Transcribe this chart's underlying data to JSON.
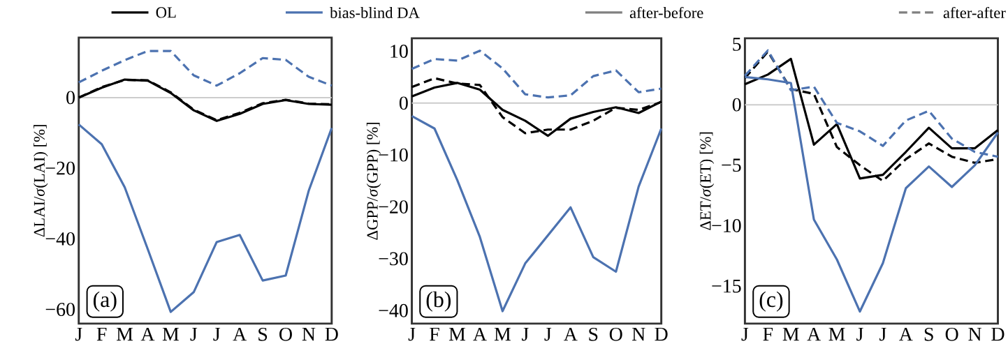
{
  "chart_data": [
    {
      "type": "line",
      "legend": "top",
      "ylabel": "ΔLAI/*σ*(LAI) [%]",
      "annotations": [
        "(a)",
        "after-before",
        "after-after"
      ],
      "categories": [
        "J",
        "F",
        "M",
        "A",
        "M",
        "J",
        "J",
        "A",
        "S",
        "O",
        "N",
        "D"
      ],
      "ylim": [
        -64,
        17
      ],
      "yticks": [
        {
          "value": 0,
          "label": "0"
        },
        {
          "value": -20,
          "label": "−20"
        },
        {
          "value": -40,
          "label": "−40"
        },
        {
          "value": -60,
          "label": "−60"
        }
      ],
      "ref_lines": [
        {
          "axis": "y",
          "value": 0,
          "color": "#cccccc"
        }
      ],
      "series": [
        {
          "name": "OL",
          "color": "#000000",
          "line_style": "solid",
          "values": [
            0,
            2.8,
            5.1,
            4.8,
            1.3,
            -3.6,
            -6.6,
            -4.6,
            -1.8,
            -0.7,
            -1.8,
            -2.0
          ]
        },
        {
          "color": "#000000",
          "line_style": "dashed",
          "values": [
            0,
            3.0,
            5.0,
            4.9,
            1.5,
            -3.4,
            -6.4,
            -4.3,
            -1.6,
            -0.6,
            -1.7,
            -1.9
          ]
        },
        {
          "name": "bias-blind DA",
          "color": "#4c72b0",
          "line_style": "solid",
          "values": [
            -7.6,
            -13.2,
            -25.4,
            -42.9,
            -60.7,
            -55.1,
            -40.9,
            -38.9,
            -51.8,
            -50.4,
            -26.4,
            -8.6
          ]
        },
        {
          "color": "#4c72b0",
          "line_style": "dashed",
          "values": [
            4.3,
            7.6,
            10.6,
            13.2,
            13.2,
            6.3,
            3.4,
            6.9,
            11.2,
            10.7,
            5.9,
            3.4
          ]
        }
      ]
    },
    {
      "type": "line",
      "ylabel": "ΔGPP/*σ*(GPP) [%]",
      "annotations": [
        "(b)"
      ],
      "categories": [
        "J",
        "F",
        "M",
        "A",
        "M",
        "J",
        "J",
        "A",
        "S",
        "O",
        "N",
        "D"
      ],
      "ylim": [
        -42.5,
        12.5
      ],
      "yticks": [
        {
          "value": 10,
          "label": "10"
        },
        {
          "value": 0,
          "label": "0"
        },
        {
          "value": -10,
          "label": "−10"
        },
        {
          "value": -20,
          "label": "−20"
        },
        {
          "value": -30,
          "label": "−30"
        },
        {
          "value": -40,
          "label": "−40"
        }
      ],
      "ref_lines": [
        {
          "axis": "y",
          "value": 0,
          "color": "#cccccc"
        }
      ],
      "series": [
        {
          "color": "#000000",
          "line_style": "solid",
          "values": [
            1.3,
            3.0,
            3.9,
            2.6,
            -1.3,
            -3.4,
            -6.3,
            -3.0,
            -1.7,
            -0.8,
            -1.9,
            0.3
          ]
        },
        {
          "color": "#000000",
          "line_style": "dashed",
          "values": [
            3.1,
            4.8,
            3.8,
            3.5,
            -2.7,
            -5.8,
            -5.1,
            -5.1,
            -3.4,
            -0.9,
            -1.3,
            0.2
          ]
        },
        {
          "color": "#4c72b0",
          "line_style": "solid",
          "values": [
            -2.5,
            -4.9,
            -14.8,
            -25.8,
            -40.1,
            -30.9,
            -25.5,
            -20.1,
            -29.7,
            -32.5,
            -16.1,
            -4.9
          ]
        },
        {
          "color": "#4c72b0",
          "line_style": "dashed",
          "values": [
            6.6,
            8.5,
            8.2,
            10.1,
            6.7,
            1.7,
            1.1,
            1.5,
            5.2,
            6.3,
            2.1,
            2.8
          ]
        }
      ]
    },
    {
      "type": "line",
      "ylabel": "ΔET/*σ*(ET) [%]",
      "annotations": [
        "(c)"
      ],
      "categories": [
        "J",
        "F",
        "M",
        "A",
        "M",
        "J",
        "J",
        "A",
        "S",
        "O",
        "N",
        "D"
      ],
      "ylim": [
        -18.1,
        5.5
      ],
      "yticks": [
        {
          "value": 5,
          "label": "5"
        },
        {
          "value": 0,
          "label": "0"
        },
        {
          "value": -5,
          "label": "−5"
        },
        {
          "value": -10,
          "label": "−10"
        },
        {
          "value": -15,
          "label": "−15"
        }
      ],
      "ref_lines": [
        {
          "axis": "y",
          "value": 0,
          "color": "#cccccc"
        }
      ],
      "series": [
        {
          "color": "#000000",
          "line_style": "solid",
          "values": [
            1.7,
            2.5,
            3.8,
            -3.3,
            -1.6,
            -6.1,
            -5.8,
            -3.9,
            -1.9,
            -3.6,
            -3.6,
            -2.1
          ]
        },
        {
          "color": "#000000",
          "line_style": "dashed",
          "values": [
            2.2,
            4.4,
            1.3,
            0.9,
            -3.5,
            -5.0,
            -6.3,
            -4.5,
            -3.2,
            -4.3,
            -4.8,
            -4.5
          ]
        },
        {
          "color": "#4c72b0",
          "line_style": "solid",
          "values": [
            2.3,
            2.1,
            1.8,
            -9.5,
            -12.8,
            -17.1,
            -13.1,
            -6.9,
            -5.1,
            -6.8,
            -5.0,
            -2.3
          ]
        },
        {
          "color": "#4c72b0",
          "line_style": "dashed",
          "values": [
            2.4,
            4.5,
            1.2,
            1.5,
            -1.5,
            -2.2,
            -3.4,
            -1.3,
            -0.5,
            -2.8,
            -3.9,
            -4.3
          ]
        }
      ]
    }
  ]
}
